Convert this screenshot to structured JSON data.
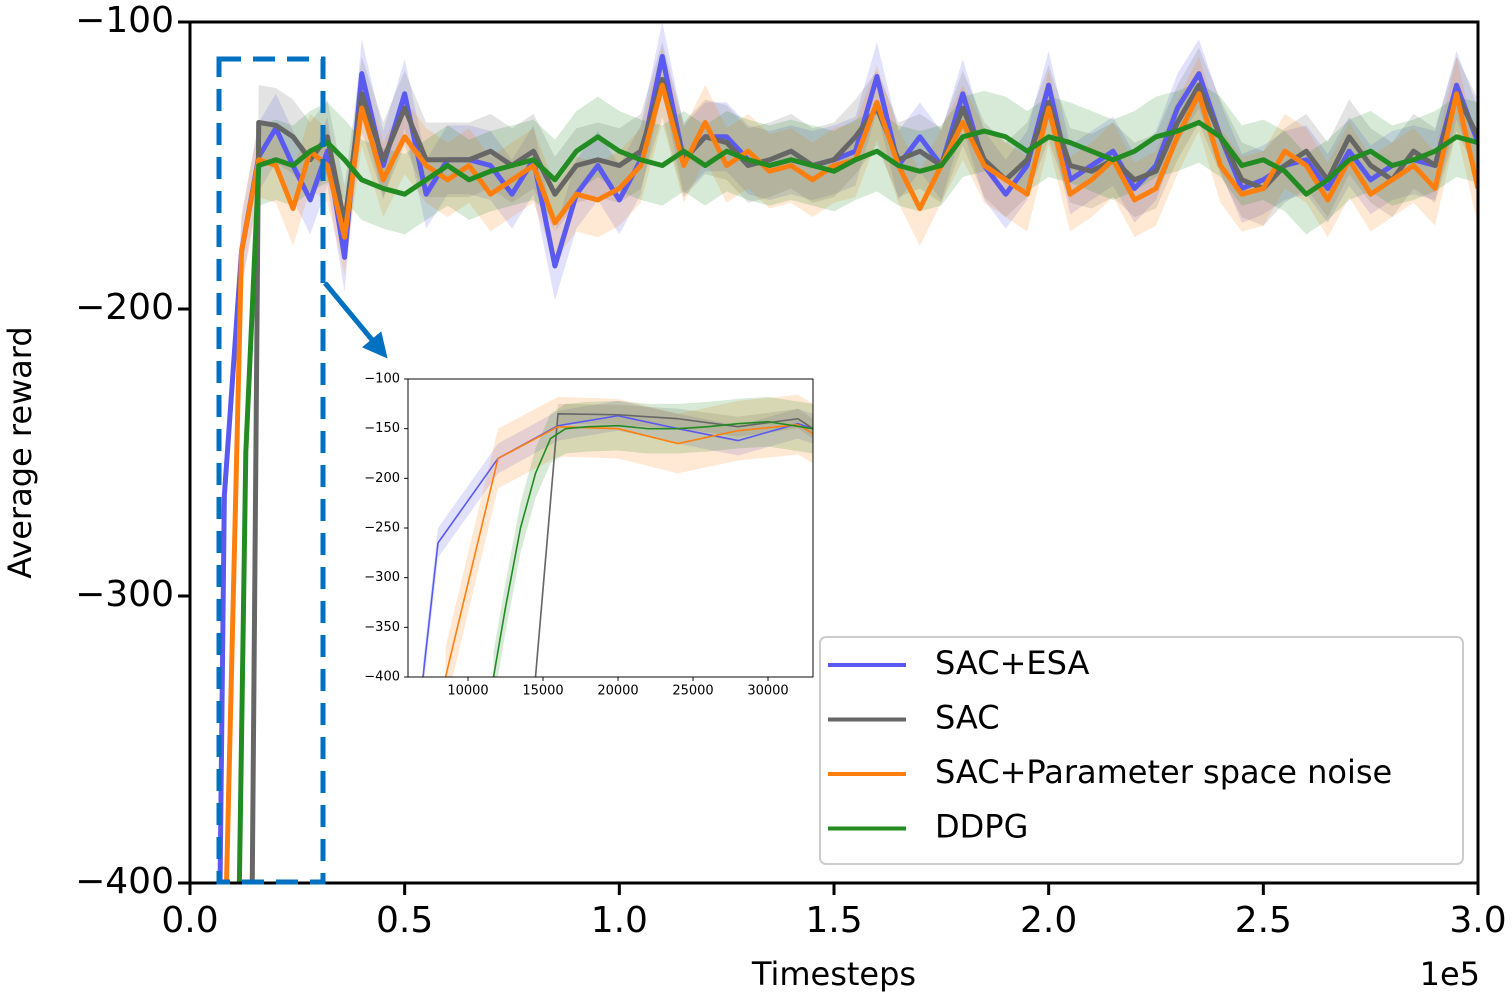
{
  "chart_data": [
    {
      "type": "line",
      "xlabel": "Timesteps",
      "ylabel": "Average reward",
      "x_offset": "1e5",
      "xlim": [
        0,
        3
      ],
      "ylim": [
        -400,
        -100
      ],
      "xticks": [
        {
          "value": 0,
          "label": "0.0"
        },
        0.5,
        {
          "value": 1,
          "label": "1.0"
        },
        1.5,
        {
          "value": 2,
          "label": "2.0"
        },
        2.5,
        {
          "value": 3,
          "label": "3.0"
        }
      ],
      "yticks": [
        {
          "value": -400,
          "label": "−400"
        },
        {
          "value": -300,
          "label": "−300"
        },
        {
          "value": -200,
          "label": "−200"
        },
        {
          "value": -100,
          "label": "−100"
        }
      ],
      "legend": "lower right",
      "series": [
        {
          "name": "SAC+ESA",
          "color": "#5a5af0",
          "band": 12,
          "x": [
            0.07,
            0.08,
            0.12,
            0.16,
            0.2,
            0.24,
            0.28,
            0.32,
            0.36,
            0.4,
            0.45,
            0.5,
            0.55,
            0.6,
            0.65,
            0.7,
            0.75,
            0.8,
            0.85,
            0.9,
            0.95,
            1.0,
            1.05,
            1.1,
            1.15,
            1.2,
            1.25,
            1.3,
            1.35,
            1.4,
            1.45,
            1.5,
            1.55,
            1.6,
            1.65,
            1.7,
            1.75,
            1.8,
            1.85,
            1.9,
            1.95,
            2.0,
            2.05,
            2.1,
            2.15,
            2.2,
            2.25,
            2.3,
            2.35,
            2.4,
            2.45,
            2.5,
            2.55,
            2.6,
            2.65,
            2.7,
            2.75,
            2.8,
            2.85,
            2.9,
            2.95,
            3.0
          ],
          "values": [
            -400,
            -265,
            -180,
            -147,
            -137,
            -150,
            -162,
            -145,
            -182,
            -118,
            -150,
            -125,
            -160,
            -148,
            -148,
            -150,
            -160,
            -148,
            -185,
            -160,
            -150,
            -162,
            -148,
            -112,
            -148,
            -140,
            -140,
            -148,
            -150,
            -148,
            -150,
            -148,
            -145,
            -119,
            -150,
            -140,
            -150,
            -125,
            -150,
            -160,
            -150,
            -122,
            -155,
            -150,
            -145,
            -158,
            -150,
            -130,
            -118,
            -140,
            -158,
            -155,
            -150,
            -148,
            -158,
            -145,
            -155,
            -150,
            -148,
            -150,
            -122,
            -142
          ]
        },
        {
          "name": "SAC",
          "color": "#666666",
          "band": 13,
          "x": [
            0.145,
            0.16,
            0.2,
            0.24,
            0.28,
            0.32,
            0.36,
            0.4,
            0.45,
            0.5,
            0.55,
            0.6,
            0.65,
            0.7,
            0.75,
            0.8,
            0.85,
            0.9,
            0.95,
            1.0,
            1.05,
            1.1,
            1.15,
            1.2,
            1.25,
            1.3,
            1.35,
            1.4,
            1.45,
            1.5,
            1.55,
            1.6,
            1.65,
            1.7,
            1.75,
            1.8,
            1.85,
            1.9,
            1.95,
            2.0,
            2.05,
            2.1,
            2.15,
            2.2,
            2.25,
            2.3,
            2.35,
            2.4,
            2.45,
            2.5,
            2.55,
            2.6,
            2.65,
            2.7,
            2.75,
            2.8,
            2.85,
            2.9,
            2.95,
            3.0
          ],
          "values": [
            -400,
            -135,
            -136,
            -140,
            -148,
            -140,
            -170,
            -125,
            -148,
            -130,
            -148,
            -148,
            -148,
            -145,
            -150,
            -145,
            -160,
            -150,
            -148,
            -150,
            -145,
            -120,
            -148,
            -140,
            -142,
            -150,
            -148,
            -145,
            -150,
            -148,
            -140,
            -130,
            -148,
            -145,
            -150,
            -130,
            -148,
            -155,
            -148,
            -128,
            -150,
            -152,
            -148,
            -155,
            -152,
            -135,
            -122,
            -140,
            -155,
            -158,
            -150,
            -145,
            -155,
            -140,
            -150,
            -155,
            -145,
            -150,
            -125,
            -140
          ]
        },
        {
          "name": "SAC+Parameter space noise",
          "color": "#ff7f0e",
          "band": 13,
          "x": [
            0.085,
            0.12,
            0.16,
            0.2,
            0.24,
            0.28,
            0.32,
            0.36,
            0.4,
            0.45,
            0.5,
            0.55,
            0.6,
            0.65,
            0.7,
            0.75,
            0.8,
            0.85,
            0.9,
            0.95,
            1.0,
            1.05,
            1.1,
            1.15,
            1.2,
            1.25,
            1.3,
            1.35,
            1.4,
            1.45,
            1.5,
            1.55,
            1.6,
            1.65,
            1.7,
            1.75,
            1.8,
            1.85,
            1.9,
            1.95,
            2.0,
            2.05,
            2.1,
            2.15,
            2.2,
            2.25,
            2.3,
            2.35,
            2.4,
            2.45,
            2.5,
            2.55,
            2.6,
            2.65,
            2.7,
            2.75,
            2.8,
            2.85,
            2.9,
            2.95,
            3.0
          ],
          "values": [
            -400,
            -180,
            -148,
            -150,
            -165,
            -145,
            -150,
            -175,
            -130,
            -155,
            -140,
            -150,
            -155,
            -150,
            -160,
            -155,
            -150,
            -170,
            -160,
            -162,
            -158,
            -150,
            -122,
            -150,
            -135,
            -150,
            -145,
            -152,
            -150,
            -155,
            -150,
            -148,
            -128,
            -150,
            -165,
            -150,
            -135,
            -150,
            -155,
            -160,
            -130,
            -160,
            -155,
            -148,
            -162,
            -158,
            -140,
            -125,
            -150,
            -160,
            -158,
            -145,
            -150,
            -162,
            -148,
            -160,
            -155,
            -150,
            -158,
            -125,
            -158
          ]
        },
        {
          "name": "DDPG",
          "color": "#228b22",
          "band": 14,
          "x": [
            0.115,
            0.13,
            0.16,
            0.2,
            0.24,
            0.28,
            0.32,
            0.36,
            0.4,
            0.45,
            0.5,
            0.55,
            0.6,
            0.65,
            0.7,
            0.75,
            0.8,
            0.85,
            0.9,
            0.95,
            1.0,
            1.05,
            1.1,
            1.15,
            1.2,
            1.25,
            1.3,
            1.35,
            1.4,
            1.45,
            1.5,
            1.55,
            1.6,
            1.65,
            1.7,
            1.75,
            1.8,
            1.85,
            1.9,
            1.95,
            2.0,
            2.05,
            2.1,
            2.15,
            2.2,
            2.25,
            2.3,
            2.35,
            2.4,
            2.45,
            2.5,
            2.55,
            2.6,
            2.65,
            2.7,
            2.75,
            2.8,
            2.85,
            2.9,
            2.95,
            3.0
          ],
          "values": [
            -400,
            -250,
            -150,
            -148,
            -150,
            -145,
            -142,
            -148,
            -155,
            -158,
            -160,
            -155,
            -150,
            -155,
            -152,
            -150,
            -148,
            -155,
            -145,
            -140,
            -145,
            -148,
            -150,
            -145,
            -150,
            -145,
            -148,
            -150,
            -148,
            -150,
            -152,
            -148,
            -145,
            -150,
            -152,
            -150,
            -140,
            -138,
            -140,
            -145,
            -140,
            -142,
            -145,
            -148,
            -145,
            -140,
            -138,
            -135,
            -140,
            -150,
            -148,
            -152,
            -160,
            -155,
            -148,
            -145,
            -150,
            -148,
            -145,
            -140,
            -142
          ]
        }
      ]
    },
    {
      "type": "line",
      "xlim": [
        6000,
        33000
      ],
      "ylim": [
        -400,
        -100
      ],
      "xticks": [
        10000,
        15000,
        20000,
        25000,
        30000
      ],
      "yticks": [
        {
          "value": -400,
          "label": "−400"
        },
        {
          "value": -350,
          "label": "−350"
        },
        {
          "value": -300,
          "label": "−300"
        },
        {
          "value": -250,
          "label": "−250"
        },
        {
          "value": -200,
          "label": "−200"
        },
        {
          "value": -150,
          "label": "−150"
        },
        {
          "value": -100,
          "label": "−100"
        }
      ],
      "series": [
        {
          "color": "#5a5af0",
          "band": 15,
          "x": [
            7000,
            8000,
            12000,
            16000,
            20000,
            24000,
            28000,
            32000,
            33000
          ],
          "values": [
            -400,
            -265,
            -180,
            -147,
            -137,
            -150,
            -162,
            -145,
            -150
          ]
        },
        {
          "color": "#666666",
          "band": 10,
          "x": [
            14500,
            16000,
            20000,
            24000,
            28000,
            32000,
            33000
          ],
          "values": [
            -400,
            -135,
            -136,
            -140,
            -148,
            -140,
            -150
          ]
        },
        {
          "color": "#ff7f0e",
          "band": 30,
          "x": [
            8500,
            12000,
            16000,
            20000,
            24000,
            28000,
            32000,
            33000
          ],
          "values": [
            -400,
            -180,
            -148,
            -150,
            -165,
            -152,
            -146,
            -155
          ]
        },
        {
          "color": "#228b22",
          "band": 25,
          "x": [
            11700,
            12500,
            13500,
            14500,
            15500,
            16500,
            18000,
            20000,
            22000,
            24000,
            26000,
            28000,
            30000,
            33000
          ],
          "values": [
            -400,
            -330,
            -250,
            -195,
            -160,
            -150,
            -148,
            -147,
            -150,
            -150,
            -148,
            -145,
            -143,
            -150
          ]
        }
      ]
    }
  ]
}
